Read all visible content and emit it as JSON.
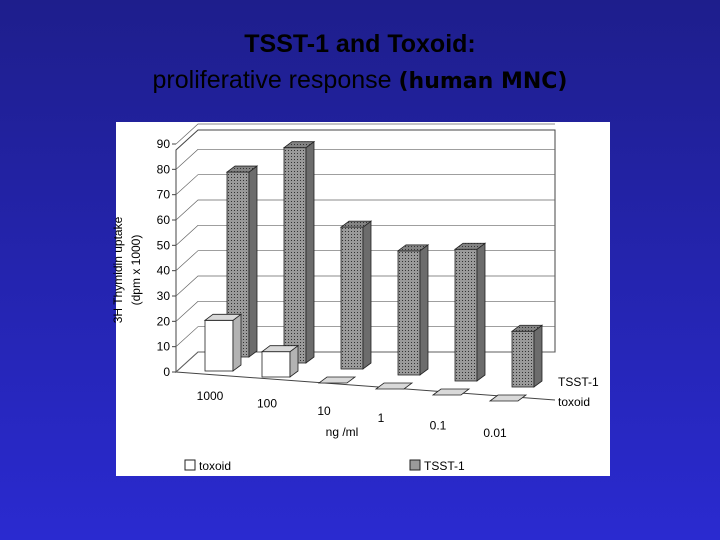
{
  "title": "TSST-1 and Toxoid:",
  "subtitle": "proliferative response",
  "subtitle_bold": "(human MNC)",
  "chart_data": {
    "type": "bar3d",
    "y_label": [
      "3H Thymidin uptake",
      "(dpm x 1000)"
    ],
    "x_label": "ng /ml",
    "categories": [
      "1000",
      "100",
      "10",
      "1",
      "0.1",
      "0.01"
    ],
    "series": [
      {
        "name": "toxoid",
        "color": "#ffffff",
        "values": [
          20,
          10,
          0,
          0,
          0,
          0
        ]
      },
      {
        "name": "TSST-1",
        "color": "#9a9a9a",
        "values": [
          73,
          85,
          56,
          49,
          52,
          22
        ]
      }
    ],
    "ylim": [
      0,
      90
    ],
    "yticks": [
      0,
      10,
      20,
      30,
      40,
      50,
      60,
      70,
      80,
      90
    ],
    "grid": true
  }
}
